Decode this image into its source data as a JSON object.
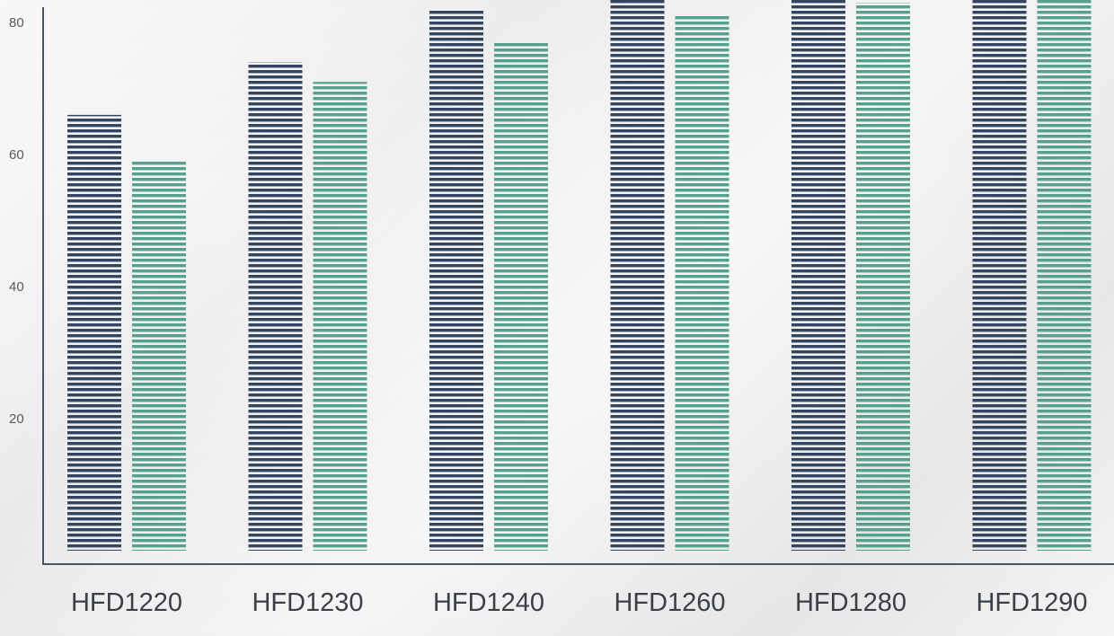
{
  "chart_data": {
    "type": "bar",
    "categories": [
      "HFD1220",
      "HFD1230",
      "HFD1240",
      "HFD1260",
      "HFD1280",
      "HFD1290"
    ],
    "series": [
      {
        "values": [
          66,
          74,
          82,
          86,
          88,
          90
        ]
      },
      {
        "values": [
          59,
          71,
          77,
          81,
          83,
          86
        ]
      }
    ],
    "colors": [
      "#34465f",
      "#57a08e"
    ],
    "yticks": [
      20,
      40,
      60,
      80
    ],
    "ylim": [
      0,
      84
    ],
    "grid": false,
    "bar_style": "horizontal-striped"
  }
}
